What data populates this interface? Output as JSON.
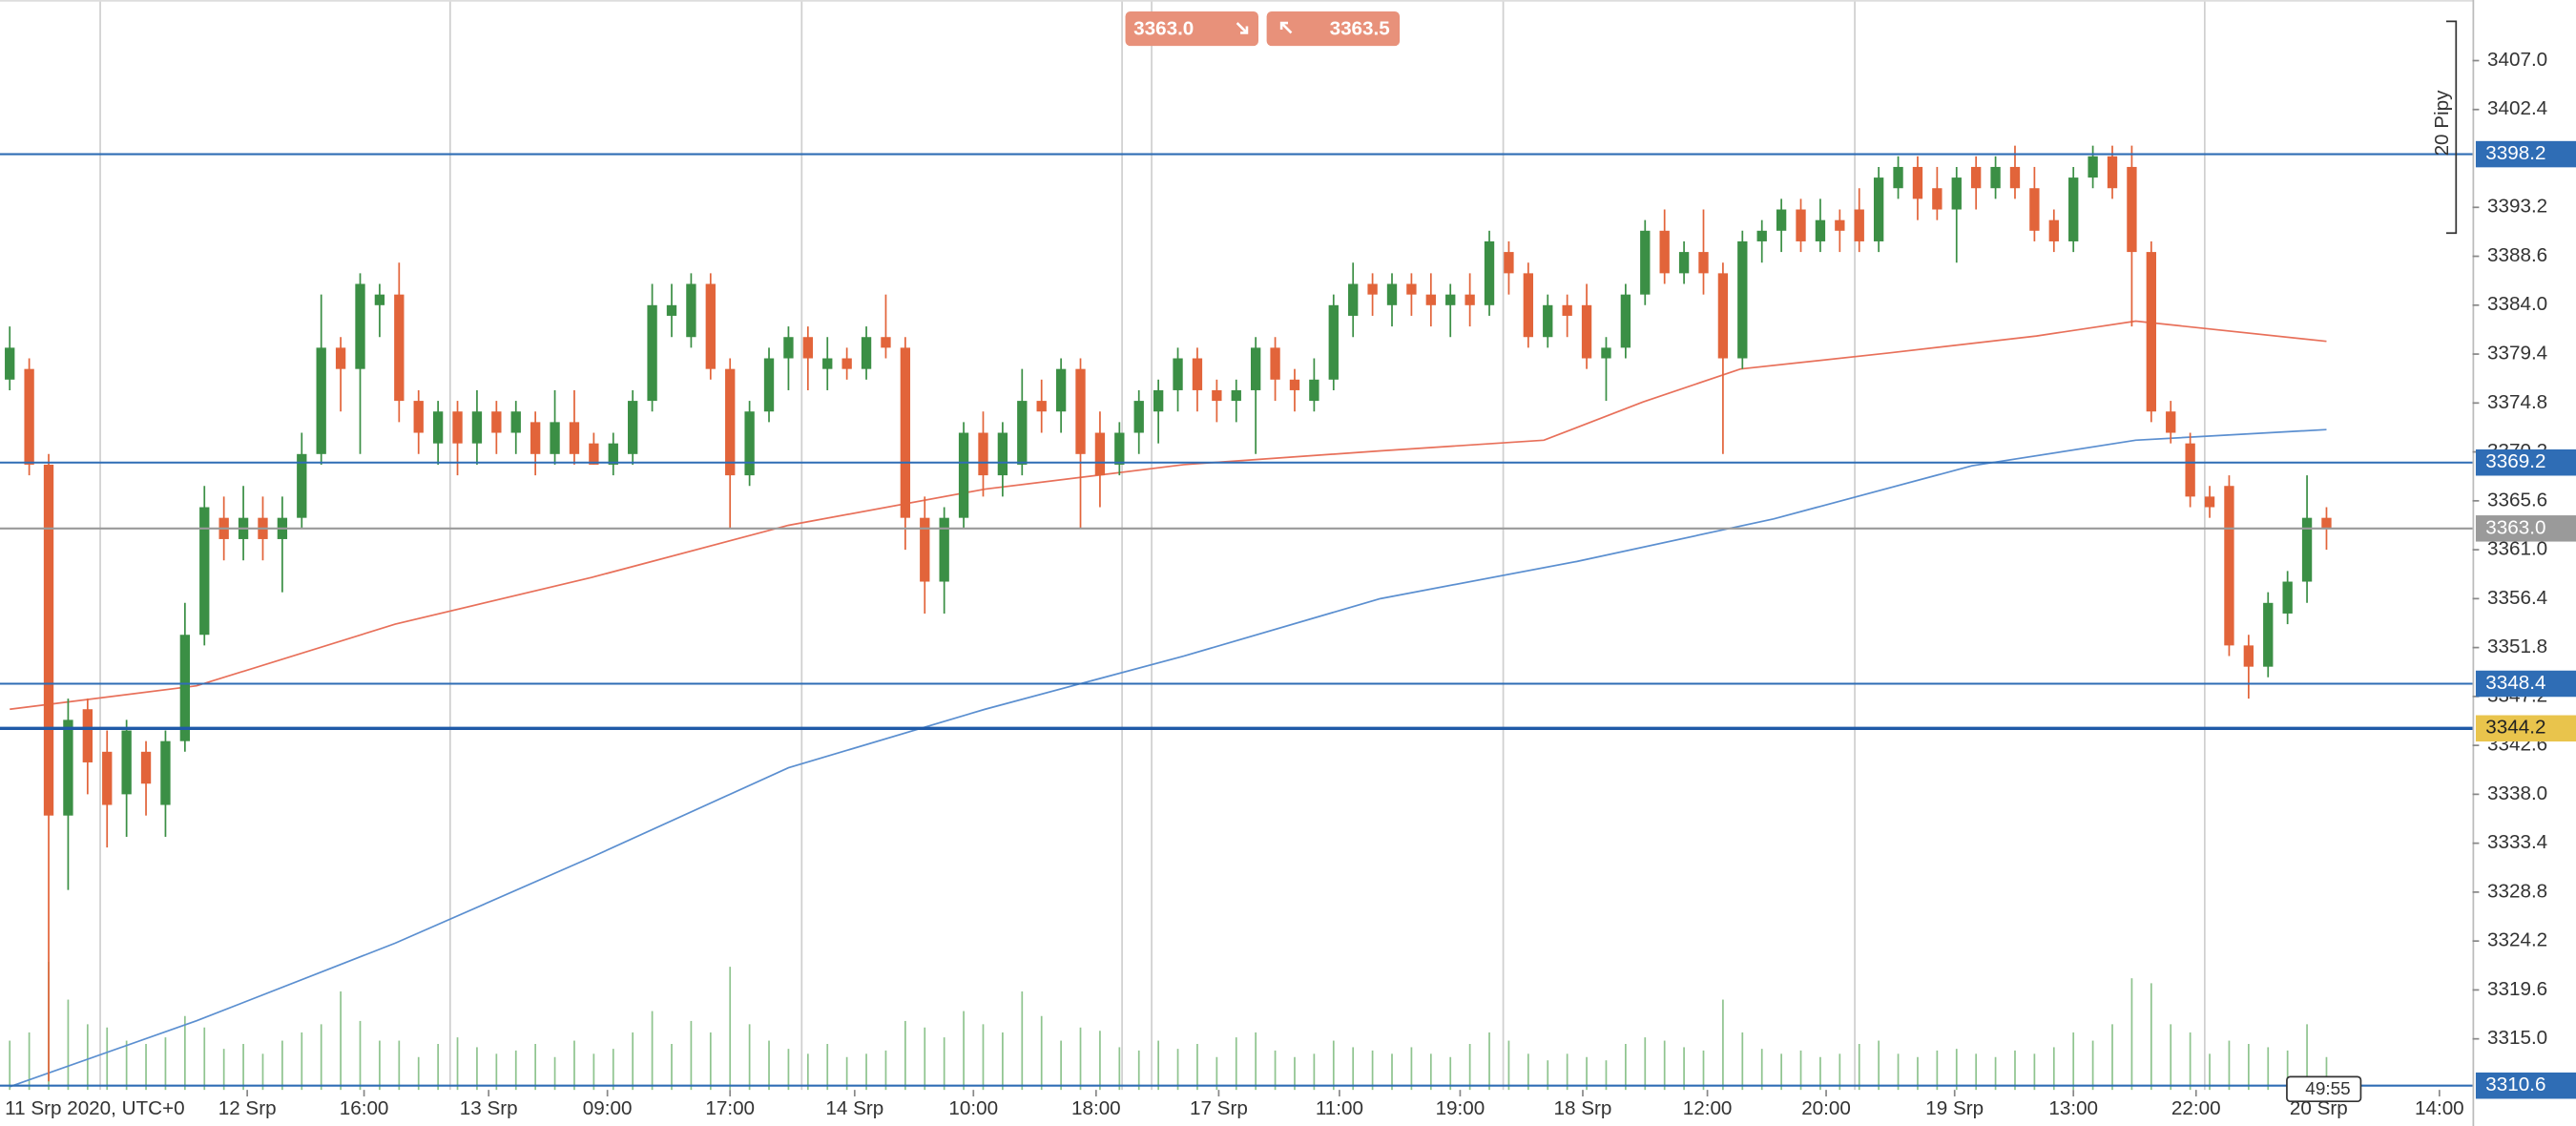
{
  "toolbar": {
    "sell": "3363.0",
    "buy": "3363.5"
  },
  "range_label": "20 Pipy",
  "countdown": "49:55",
  "chart_data": {
    "type": "candlestick",
    "x_origin_label": "11 Srp 2020, UTC+0",
    "xlim": [
      -0.5,
      126.5
    ],
    "xticks": [
      {
        "value": 12.2,
        "label": "12 Srp"
      },
      {
        "value": 18.2,
        "label": "16:00"
      },
      {
        "value": 24.6,
        "label": "13 Srp"
      },
      {
        "value": 30.7,
        "label": "09:00"
      },
      {
        "value": 37,
        "label": "17:00"
      },
      {
        "value": 43.4,
        "label": "14 Srp"
      },
      {
        "value": 49.5,
        "label": "10:00"
      },
      {
        "value": 55.8,
        "label": "18:00"
      },
      {
        "value": 62.1,
        "label": "17 Srp"
      },
      {
        "value": 68.3,
        "label": "11:00"
      },
      {
        "value": 74.5,
        "label": "19:00"
      },
      {
        "value": 80.8,
        "label": "18 Srp"
      },
      {
        "value": 87.2,
        "label": "12:00"
      },
      {
        "value": 93.3,
        "label": "20:00"
      },
      {
        "value": 99.9,
        "label": "19 Srp"
      },
      {
        "value": 106,
        "label": "13:00"
      },
      {
        "value": 112.3,
        "label": "22:00"
      },
      {
        "value": 118.6,
        "label": "20 Srp"
      },
      {
        "value": 124.8,
        "label": "14:00"
      }
    ],
    "ylim": [
      3310.2,
      3412.7
    ],
    "yticks": [
      {
        "value": 3407,
        "label": "3407.0"
      },
      3402.4,
      3393.2,
      3388.6,
      {
        "value": 3384,
        "label": "3384.0"
      },
      3379.4,
      3374.8,
      3370.2,
      3365.6,
      {
        "value": 3361,
        "label": "3361.0"
      },
      3356.4,
      3351.8,
      3347.2,
      3342.6,
      {
        "value": 3338,
        "label": "3338.0"
      },
      3333.4,
      3328.8,
      3324.2,
      3319.6,
      {
        "value": 3315,
        "label": "3315.0"
      }
    ],
    "up_color": "#3b8f45",
    "down_color": "#e2643a",
    "volume_color": "#8fc48f",
    "candles": {
      "open": [
        3377,
        3378,
        3369,
        3336,
        3346,
        3342,
        3338,
        3342,
        3337,
        3343,
        3353,
        3364,
        3362,
        3364,
        3362,
        3364,
        3370,
        3380,
        3378,
        3384,
        3385,
        3375,
        3371,
        3374,
        3371,
        3374,
        3372,
        3373,
        3370,
        3373,
        3371,
        3369,
        3370,
        3375,
        3383,
        3381,
        3386,
        3378,
        3368,
        3374,
        3379,
        3381,
        3378,
        3379,
        3378,
        3381,
        3380,
        3364,
        3358,
        3364,
        3372,
        3368,
        3369,
        3375,
        3374,
        3378,
        3372,
        3369,
        3372,
        3374,
        3376,
        3379,
        3376,
        3375,
        3376,
        3380,
        3377,
        3375,
        3377,
        3383,
        3386,
        3384,
        3386,
        3385,
        3384,
        3385,
        3384,
        3389,
        3387,
        3381,
        3384,
        3384,
        3379,
        3380,
        3385,
        3391,
        3387,
        3389,
        3387,
        3379,
        3390,
        3391,
        3393,
        3390,
        3392,
        3393,
        3390,
        3395,
        3397,
        3395,
        3393,
        3397,
        3395,
        3397,
        3395,
        3392,
        3390,
        3396,
        3398,
        3397,
        3389,
        3374,
        3371,
        3366,
        3367,
        3352,
        3350,
        3355,
        3358,
        3364
      ],
      "high": [
        3382,
        3379,
        3370,
        3347,
        3347,
        3344,
        3345,
        3343,
        3344,
        3356,
        3367,
        3366,
        3367,
        3366,
        3366,
        3372,
        3385,
        3381,
        3387,
        3386,
        3388,
        3376,
        3375,
        3375,
        3376,
        3375,
        3375,
        3374,
        3376,
        3376,
        3372,
        3372,
        3376,
        3386,
        3386,
        3387,
        3387,
        3379,
        3375,
        3380,
        3382,
        3382,
        3381,
        3380,
        3382,
        3385,
        3381,
        3366,
        3365,
        3373,
        3374,
        3373,
        3378,
        3377,
        3379,
        3379,
        3374,
        3373,
        3376,
        3377,
        3380,
        3380,
        3377,
        3377,
        3381,
        3381,
        3378,
        3379,
        3385,
        3388,
        3387,
        3387,
        3387,
        3387,
        3386,
        3387,
        3391,
        3390,
        3388,
        3385,
        3385,
        3386,
        3381,
        3386,
        3392,
        3393,
        3390,
        3393,
        3388,
        3391,
        3392,
        3394,
        3394,
        3394,
        3393,
        3395,
        3397,
        3398,
        3398,
        3397,
        3397,
        3398,
        3398,
        3399,
        3397,
        3393,
        3397,
        3399,
        3399,
        3399,
        3390,
        3375,
        3372,
        3367,
        3368,
        3353,
        3357,
        3359,
        3368,
        3365
      ],
      "low": [
        3376,
        3368,
        3311,
        3329,
        3338,
        3333,
        3334,
        3336,
        3334,
        3342,
        3352,
        3360,
        3360,
        3360,
        3357,
        3363,
        3369,
        3374,
        3370,
        3381,
        3373,
        3370,
        3369,
        3368,
        3369,
        3370,
        3370,
        3368,
        3369,
        3369,
        3369,
        3368,
        3369,
        3374,
        3381,
        3380,
        3377,
        3363,
        3367,
        3373,
        3376,
        3376,
        3376,
        3377,
        3377,
        3379,
        3361,
        3355,
        3355,
        3363,
        3366,
        3366,
        3368,
        3372,
        3372,
        3363,
        3365,
        3368,
        3370,
        3371,
        3374,
        3374,
        3373,
        3373,
        3370,
        3375,
        3374,
        3374,
        3376,
        3381,
        3383,
        3382,
        3383,
        3382,
        3381,
        3382,
        3383,
        3385,
        3380,
        3380,
        3381,
        3378,
        3375,
        3379,
        3384,
        3386,
        3386,
        3385,
        3370,
        3378,
        3388,
        3389,
        3389,
        3389,
        3389,
        3389,
        3389,
        3394,
        3392,
        3392,
        3388,
        3393,
        3394,
        3394,
        3390,
        3389,
        3389,
        3395,
        3394,
        3382,
        3373,
        3371,
        3365,
        3364,
        3351,
        3347,
        3349,
        3354,
        3356,
        3361
      ],
      "close": [
        3380,
        3369,
        3336,
        3345,
        3341,
        3337,
        3344,
        3339,
        3343,
        3353,
        3365,
        3362,
        3364,
        3362,
        3364,
        3370,
        3380,
        3378,
        3386,
        3385,
        3375,
        3372,
        3374,
        3371,
        3374,
        3372,
        3374,
        3370,
        3373,
        3370,
        3369,
        3371,
        3375,
        3384,
        3384,
        3386,
        3378,
        3368,
        3374,
        3379,
        3381,
        3379,
        3379,
        3378,
        3381,
        3380,
        3364,
        3358,
        3364,
        3372,
        3368,
        3372,
        3375,
        3374,
        3378,
        3370,
        3368,
        3372,
        3375,
        3376,
        3379,
        3376,
        3375,
        3376,
        3380,
        3377,
        3376,
        3377,
        3384,
        3386,
        3385,
        3386,
        3385,
        3384,
        3385,
        3384,
        3390,
        3387,
        3381,
        3384,
        3383,
        3379,
        3380,
        3385,
        3391,
        3387,
        3389,
        3387,
        3379,
        3390,
        3391,
        3393,
        3390,
        3392,
        3391,
        3390,
        3396,
        3397,
        3394,
        3393,
        3396,
        3395,
        3397,
        3395,
        3391,
        3390,
        3396,
        3398,
        3395,
        3389,
        3374,
        3372,
        3366,
        3365,
        3352,
        3350,
        3356,
        3358,
        3364,
        3363
      ],
      "volume": [
        30,
        35,
        78,
        55,
        40,
        38,
        30,
        28,
        32,
        45,
        38,
        25,
        28,
        22,
        30,
        35,
        40,
        60,
        42,
        30,
        30,
        20,
        28,
        32,
        26,
        22,
        24,
        28,
        20,
        30,
        22,
        25,
        35,
        48,
        28,
        42,
        35,
        75,
        40,
        30,
        25,
        22,
        28,
        20,
        22,
        24,
        42,
        38,
        32,
        48,
        40,
        35,
        60,
        45,
        30,
        38,
        36,
        26,
        24,
        30,
        25,
        28,
        20,
        32,
        35,
        24,
        20,
        22,
        30,
        26,
        24,
        22,
        26,
        22,
        20,
        28,
        35,
        30,
        22,
        18,
        22,
        20,
        18,
        28,
        32,
        30,
        26,
        24,
        55,
        35,
        25,
        22,
        24,
        20,
        22,
        28,
        30,
        22,
        20,
        24,
        25,
        22,
        20,
        24,
        22,
        26,
        35,
        30,
        40,
        68,
        65,
        40,
        35,
        22,
        30,
        28,
        26,
        24,
        40,
        20
      ]
    },
    "moving_averages": [
      {
        "color": "#e8705a",
        "x": [
          0,
          9.6,
          19.8,
          29.9,
          40,
          50.1,
          60.3,
          70.4,
          78.8,
          83.9,
          88.9,
          96.5,
          104.1,
          109.2,
          119
        ],
        "values": [
          3346.0,
          3348.2,
          3354.0,
          3358.4,
          3363.3,
          3366.7,
          3369.0,
          3370.3,
          3371.3,
          3374.9,
          3378.0,
          3379.5,
          3381.1,
          3382.5,
          3380.6
        ]
      },
      {
        "color": "#5b8fd0",
        "x": [
          0,
          9.6,
          19.8,
          29.9,
          40,
          50.1,
          60.3,
          70.4,
          80.5,
          90.6,
          100.8,
          109.2,
          119
        ],
        "values": [
          3310.5,
          3316.7,
          3324.0,
          3332.1,
          3340.5,
          3346.0,
          3351.0,
          3356.4,
          3359.9,
          3363.9,
          3368.9,
          3371.3,
          3372.3
        ]
      }
    ],
    "levels": [
      {
        "value": 3398.2,
        "label": "3398.2",
        "color": "#2f6db5",
        "label_color": "#2f6db5",
        "text_color": "#ffffff"
      },
      {
        "value": 3369.2,
        "label": "3369.2",
        "color": "#2f6db5",
        "label_color": "#2f6db5",
        "text_color": "#ffffff"
      },
      {
        "value": 3363,
        "label": "3363.0",
        "color": "#9a9a9a",
        "label_color": "#9a9a9a",
        "text_color": "#ffffff"
      },
      {
        "value": 3348.4,
        "label": "3348.4",
        "color": "#2f6db5",
        "label_color": "#2f6db5",
        "text_color": "#ffffff"
      },
      {
        "value": 3344.2,
        "label": "3344.2",
        "color": "#1f5aa8",
        "label_color": "#e9c44c",
        "text_color": "#222222"
      },
      {
        "value": 3310.6,
        "label": "3310.6",
        "color": "#2f6db5",
        "label_color": "#2f6db5",
        "text_color": "#ffffff"
      }
    ]
  }
}
